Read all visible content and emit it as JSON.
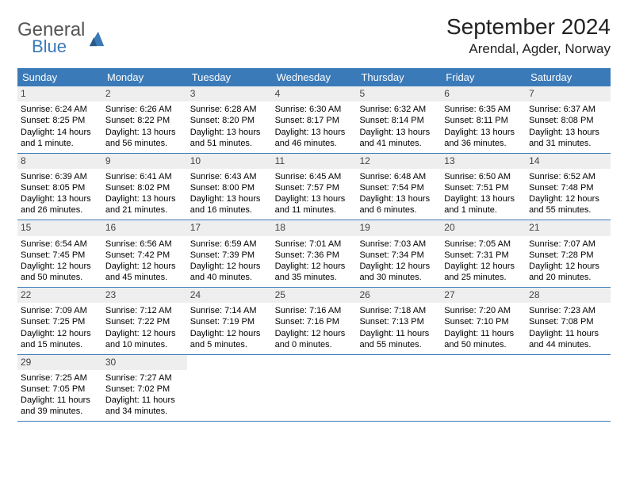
{
  "brand": {
    "main": "General",
    "sub": "Blue",
    "brand_color": "#3a7ab8",
    "text_color": "#555555"
  },
  "title": "September 2024",
  "location": "Arendal, Agder, Norway",
  "header_bg": "#3a7ab8",
  "header_fg": "#ffffff",
  "daynum_bg": "#eeeeee",
  "border_color": "#3a7ab8",
  "day_headers": [
    "Sunday",
    "Monday",
    "Tuesday",
    "Wednesday",
    "Thursday",
    "Friday",
    "Saturday"
  ],
  "weeks": [
    [
      {
        "n": "1",
        "sr": "Sunrise: 6:24 AM",
        "ss": "Sunset: 8:25 PM",
        "dl": "Daylight: 14 hours and 1 minute."
      },
      {
        "n": "2",
        "sr": "Sunrise: 6:26 AM",
        "ss": "Sunset: 8:22 PM",
        "dl": "Daylight: 13 hours and 56 minutes."
      },
      {
        "n": "3",
        "sr": "Sunrise: 6:28 AM",
        "ss": "Sunset: 8:20 PM",
        "dl": "Daylight: 13 hours and 51 minutes."
      },
      {
        "n": "4",
        "sr": "Sunrise: 6:30 AM",
        "ss": "Sunset: 8:17 PM",
        "dl": "Daylight: 13 hours and 46 minutes."
      },
      {
        "n": "5",
        "sr": "Sunrise: 6:32 AM",
        "ss": "Sunset: 8:14 PM",
        "dl": "Daylight: 13 hours and 41 minutes."
      },
      {
        "n": "6",
        "sr": "Sunrise: 6:35 AM",
        "ss": "Sunset: 8:11 PM",
        "dl": "Daylight: 13 hours and 36 minutes."
      },
      {
        "n": "7",
        "sr": "Sunrise: 6:37 AM",
        "ss": "Sunset: 8:08 PM",
        "dl": "Daylight: 13 hours and 31 minutes."
      }
    ],
    [
      {
        "n": "8",
        "sr": "Sunrise: 6:39 AM",
        "ss": "Sunset: 8:05 PM",
        "dl": "Daylight: 13 hours and 26 minutes."
      },
      {
        "n": "9",
        "sr": "Sunrise: 6:41 AM",
        "ss": "Sunset: 8:02 PM",
        "dl": "Daylight: 13 hours and 21 minutes."
      },
      {
        "n": "10",
        "sr": "Sunrise: 6:43 AM",
        "ss": "Sunset: 8:00 PM",
        "dl": "Daylight: 13 hours and 16 minutes."
      },
      {
        "n": "11",
        "sr": "Sunrise: 6:45 AM",
        "ss": "Sunset: 7:57 PM",
        "dl": "Daylight: 13 hours and 11 minutes."
      },
      {
        "n": "12",
        "sr": "Sunrise: 6:48 AM",
        "ss": "Sunset: 7:54 PM",
        "dl": "Daylight: 13 hours and 6 minutes."
      },
      {
        "n": "13",
        "sr": "Sunrise: 6:50 AM",
        "ss": "Sunset: 7:51 PM",
        "dl": "Daylight: 13 hours and 1 minute."
      },
      {
        "n": "14",
        "sr": "Sunrise: 6:52 AM",
        "ss": "Sunset: 7:48 PM",
        "dl": "Daylight: 12 hours and 55 minutes."
      }
    ],
    [
      {
        "n": "15",
        "sr": "Sunrise: 6:54 AM",
        "ss": "Sunset: 7:45 PM",
        "dl": "Daylight: 12 hours and 50 minutes."
      },
      {
        "n": "16",
        "sr": "Sunrise: 6:56 AM",
        "ss": "Sunset: 7:42 PM",
        "dl": "Daylight: 12 hours and 45 minutes."
      },
      {
        "n": "17",
        "sr": "Sunrise: 6:59 AM",
        "ss": "Sunset: 7:39 PM",
        "dl": "Daylight: 12 hours and 40 minutes."
      },
      {
        "n": "18",
        "sr": "Sunrise: 7:01 AM",
        "ss": "Sunset: 7:36 PM",
        "dl": "Daylight: 12 hours and 35 minutes."
      },
      {
        "n": "19",
        "sr": "Sunrise: 7:03 AM",
        "ss": "Sunset: 7:34 PM",
        "dl": "Daylight: 12 hours and 30 minutes."
      },
      {
        "n": "20",
        "sr": "Sunrise: 7:05 AM",
        "ss": "Sunset: 7:31 PM",
        "dl": "Daylight: 12 hours and 25 minutes."
      },
      {
        "n": "21",
        "sr": "Sunrise: 7:07 AM",
        "ss": "Sunset: 7:28 PM",
        "dl": "Daylight: 12 hours and 20 minutes."
      }
    ],
    [
      {
        "n": "22",
        "sr": "Sunrise: 7:09 AM",
        "ss": "Sunset: 7:25 PM",
        "dl": "Daylight: 12 hours and 15 minutes."
      },
      {
        "n": "23",
        "sr": "Sunrise: 7:12 AM",
        "ss": "Sunset: 7:22 PM",
        "dl": "Daylight: 12 hours and 10 minutes."
      },
      {
        "n": "24",
        "sr": "Sunrise: 7:14 AM",
        "ss": "Sunset: 7:19 PM",
        "dl": "Daylight: 12 hours and 5 minutes."
      },
      {
        "n": "25",
        "sr": "Sunrise: 7:16 AM",
        "ss": "Sunset: 7:16 PM",
        "dl": "Daylight: 12 hours and 0 minutes."
      },
      {
        "n": "26",
        "sr": "Sunrise: 7:18 AM",
        "ss": "Sunset: 7:13 PM",
        "dl": "Daylight: 11 hours and 55 minutes."
      },
      {
        "n": "27",
        "sr": "Sunrise: 7:20 AM",
        "ss": "Sunset: 7:10 PM",
        "dl": "Daylight: 11 hours and 50 minutes."
      },
      {
        "n": "28",
        "sr": "Sunrise: 7:23 AM",
        "ss": "Sunset: 7:08 PM",
        "dl": "Daylight: 11 hours and 44 minutes."
      }
    ],
    [
      {
        "n": "29",
        "sr": "Sunrise: 7:25 AM",
        "ss": "Sunset: 7:05 PM",
        "dl": "Daylight: 11 hours and 39 minutes."
      },
      {
        "n": "30",
        "sr": "Sunrise: 7:27 AM",
        "ss": "Sunset: 7:02 PM",
        "dl": "Daylight: 11 hours and 34 minutes."
      },
      null,
      null,
      null,
      null,
      null
    ]
  ]
}
